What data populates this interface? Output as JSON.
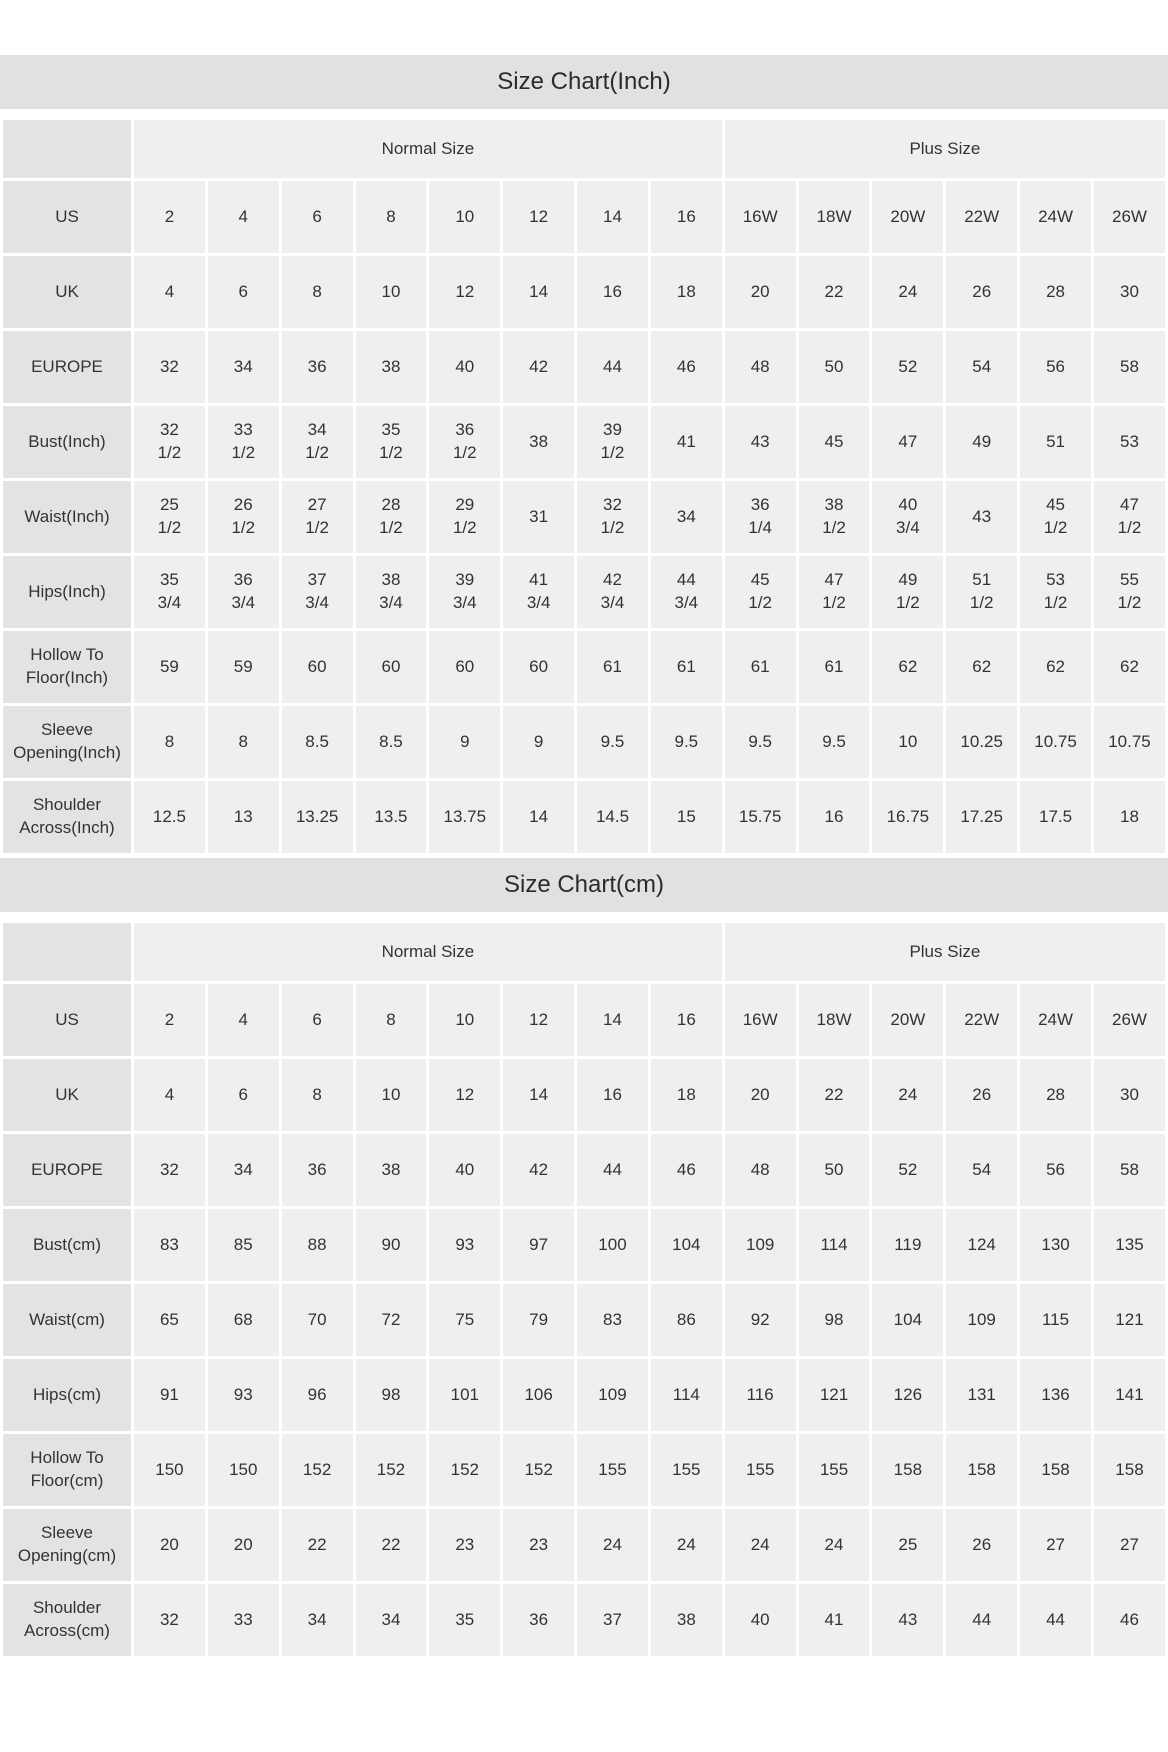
{
  "colors": {
    "page_background": "#ffffff",
    "title_bar_background": "#e1e1e1",
    "row_label_background": "#e3e3e3",
    "data_cell_background": "#efefef",
    "text": "#333333"
  },
  "chart_data": [
    {
      "type": "table",
      "title": "Size Chart(Inch)",
      "corner_label": "",
      "column_groups": [
        {
          "label": "Normal Size",
          "span": 8
        },
        {
          "label": "Plus Size",
          "span": 6
        }
      ],
      "rows": [
        {
          "label": "US",
          "values": [
            "2",
            "4",
            "6",
            "8",
            "10",
            "12",
            "14",
            "16",
            "16W",
            "18W",
            "20W",
            "22W",
            "24W",
            "26W"
          ]
        },
        {
          "label": "UK",
          "values": [
            "4",
            "6",
            "8",
            "10",
            "12",
            "14",
            "16",
            "18",
            "20",
            "22",
            "24",
            "26",
            "28",
            "30"
          ]
        },
        {
          "label": "EUROPE",
          "values": [
            "32",
            "34",
            "36",
            "38",
            "40",
            "42",
            "44",
            "46",
            "48",
            "50",
            "52",
            "54",
            "56",
            "58"
          ]
        },
        {
          "label": "Bust(Inch)",
          "values": [
            "32\n1/2",
            "33\n1/2",
            "34\n1/2",
            "35\n1/2",
            "36\n1/2",
            "38",
            "39\n1/2",
            "41",
            "43",
            "45",
            "47",
            "49",
            "51",
            "53"
          ]
        },
        {
          "label": "Waist(Inch)",
          "values": [
            "25\n1/2",
            "26\n1/2",
            "27\n1/2",
            "28\n1/2",
            "29\n1/2",
            "31",
            "32\n1/2",
            "34",
            "36\n1/4",
            "38\n1/2",
            "40\n3/4",
            "43",
            "45\n1/2",
            "47\n1/2"
          ]
        },
        {
          "label": "Hips(Inch)",
          "values": [
            "35\n3/4",
            "36\n3/4",
            "37\n3/4",
            "38\n3/4",
            "39\n3/4",
            "41\n3/4",
            "42\n3/4",
            "44\n3/4",
            "45\n1/2",
            "47\n1/2",
            "49\n1/2",
            "51\n1/2",
            "53\n1/2",
            "55\n1/2"
          ]
        },
        {
          "label": "Hollow To\nFloor(Inch)",
          "values": [
            "59",
            "59",
            "60",
            "60",
            "60",
            "60",
            "61",
            "61",
            "61",
            "61",
            "62",
            "62",
            "62",
            "62"
          ]
        },
        {
          "label": "Sleeve\nOpening(Inch)",
          "values": [
            "8",
            "8",
            "8.5",
            "8.5",
            "9",
            "9",
            "9.5",
            "9.5",
            "9.5",
            "9.5",
            "10",
            "10.25",
            "10.75",
            "10.75"
          ]
        },
        {
          "label": "Shoulder\nAcross(Inch)",
          "values": [
            "12.5",
            "13",
            "13.25",
            "13.5",
            "13.75",
            "14",
            "14.5",
            "15",
            "15.75",
            "16",
            "16.75",
            "17.25",
            "17.5",
            "18"
          ]
        }
      ]
    },
    {
      "type": "table",
      "title": "Size Chart(cm)",
      "corner_label": "",
      "column_groups": [
        {
          "label": "Normal Size",
          "span": 8
        },
        {
          "label": "Plus Size",
          "span": 6
        }
      ],
      "rows": [
        {
          "label": "US",
          "values": [
            "2",
            "4",
            "6",
            "8",
            "10",
            "12",
            "14",
            "16",
            "16W",
            "18W",
            "20W",
            "22W",
            "24W",
            "26W"
          ]
        },
        {
          "label": "UK",
          "values": [
            "4",
            "6",
            "8",
            "10",
            "12",
            "14",
            "16",
            "18",
            "20",
            "22",
            "24",
            "26",
            "28",
            "30"
          ]
        },
        {
          "label": "EUROPE",
          "values": [
            "32",
            "34",
            "36",
            "38",
            "40",
            "42",
            "44",
            "46",
            "48",
            "50",
            "52",
            "54",
            "56",
            "58"
          ]
        },
        {
          "label": "Bust(cm)",
          "values": [
            "83",
            "85",
            "88",
            "90",
            "93",
            "97",
            "100",
            "104",
            "109",
            "114",
            "119",
            "124",
            "130",
            "135"
          ]
        },
        {
          "label": "Waist(cm)",
          "values": [
            "65",
            "68",
            "70",
            "72",
            "75",
            "79",
            "83",
            "86",
            "92",
            "98",
            "104",
            "109",
            "115",
            "121"
          ]
        },
        {
          "label": "Hips(cm)",
          "values": [
            "91",
            "93",
            "96",
            "98",
            "101",
            "106",
            "109",
            "114",
            "116",
            "121",
            "126",
            "131",
            "136",
            "141"
          ]
        },
        {
          "label": "Hollow To\nFloor(cm)",
          "values": [
            "150",
            "150",
            "152",
            "152",
            "152",
            "152",
            "155",
            "155",
            "155",
            "155",
            "158",
            "158",
            "158",
            "158"
          ]
        },
        {
          "label": "Sleeve\nOpening(cm)",
          "values": [
            "20",
            "20",
            "22",
            "22",
            "23",
            "23",
            "24",
            "24",
            "24",
            "24",
            "25",
            "26",
            "27",
            "27"
          ]
        },
        {
          "label": "Shoulder\nAcross(cm)",
          "values": [
            "32",
            "33",
            "34",
            "34",
            "35",
            "36",
            "37",
            "38",
            "40",
            "41",
            "43",
            "44",
            "44",
            "46"
          ]
        }
      ]
    }
  ]
}
